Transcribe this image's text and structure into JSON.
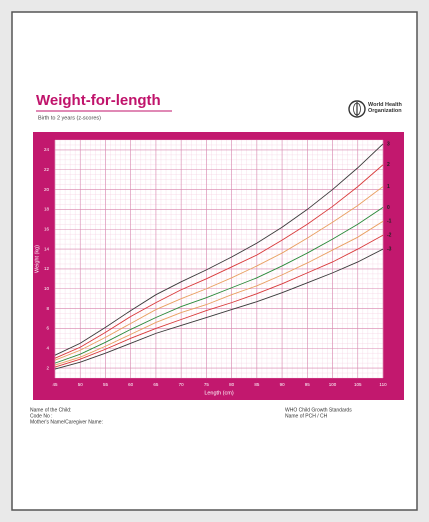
{
  "chart_data": {
    "type": "line",
    "title": "Weight-for-length",
    "subtitle": "Birth to 2 years (z-scores)",
    "organization": "World Health Organization",
    "x_label": "Length (cm)",
    "y_label": "Weight (kg)",
    "x": [
      45,
      50,
      55,
      60,
      65,
      70,
      75,
      80,
      85,
      90,
      95,
      100,
      105,
      110
    ],
    "xlim": [
      45,
      110
    ],
    "xticks": [
      45,
      50,
      55,
      60,
      65,
      70,
      75,
      80,
      85,
      90,
      95,
      100,
      105,
      110
    ],
    "ylim": [
      1,
      25
    ],
    "yticks": [
      2,
      4,
      6,
      8,
      10,
      12,
      14,
      16,
      18,
      20,
      22,
      24
    ],
    "grid": true,
    "series": [
      {
        "name": "3",
        "color": "#3a3a3a",
        "values": [
          3.3,
          4.5,
          6.1,
          7.8,
          9.4,
          10.7,
          11.9,
          13.2,
          14.6,
          16.2,
          18.0,
          20.0,
          22.2,
          24.6
        ]
      },
      {
        "name": "2",
        "color": "#d83a3a",
        "values": [
          3.0,
          4.1,
          5.6,
          7.2,
          8.6,
          9.9,
          11.0,
          12.2,
          13.4,
          14.9,
          16.5,
          18.3,
          20.3,
          22.5
        ]
      },
      {
        "name": "1",
        "color": "#e8a060",
        "values": [
          2.8,
          3.8,
          5.1,
          6.5,
          7.9,
          9.0,
          10.0,
          11.1,
          12.3,
          13.6,
          15.1,
          16.7,
          18.4,
          20.3
        ]
      },
      {
        "name": "0",
        "color": "#2a8a3a",
        "values": [
          2.5,
          3.4,
          4.6,
          5.9,
          7.1,
          8.2,
          9.1,
          10.1,
          11.1,
          12.3,
          13.6,
          15.0,
          16.5,
          18.2
        ]
      },
      {
        "name": "-1",
        "color": "#e8a060",
        "values": [
          2.3,
          3.1,
          4.2,
          5.4,
          6.6,
          7.6,
          8.4,
          9.4,
          10.3,
          11.4,
          12.6,
          13.9,
          15.2,
          16.8
        ]
      },
      {
        "name": "-2",
        "color": "#d83a3a",
        "values": [
          2.1,
          2.9,
          3.9,
          5.0,
          6.0,
          6.9,
          7.8,
          8.6,
          9.5,
          10.5,
          11.6,
          12.7,
          14.0,
          15.4
        ]
      },
      {
        "name": "-3",
        "color": "#3a3a3a",
        "values": [
          1.9,
          2.6,
          3.5,
          4.5,
          5.5,
          6.3,
          7.1,
          7.9,
          8.7,
          9.6,
          10.6,
          11.6,
          12.7,
          14.0
        ]
      }
    ]
  },
  "footer": {
    "left": [
      "Name of the Child:",
      "Code No :",
      "Mother's Name/Caregiver Name:"
    ],
    "right": [
      "WHO Child Growth Standards",
      "Name of PCH / CH"
    ]
  }
}
